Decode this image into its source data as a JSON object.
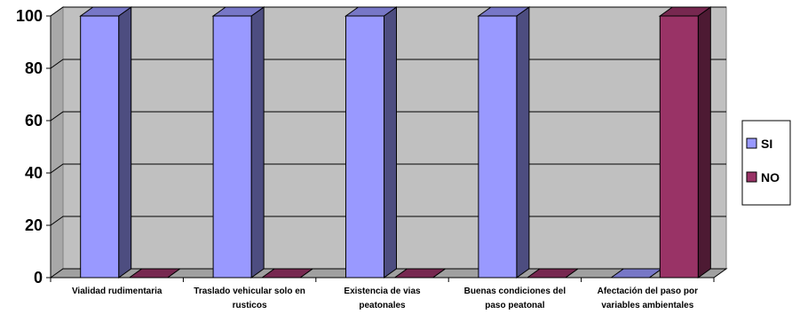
{
  "chart_data": {
    "type": "bar",
    "categories": [
      [
        "Vialidad rudimentaria"
      ],
      [
        "Traslado vehicular solo en",
        "rusticos"
      ],
      [
        "Existencia de vias",
        "peatonales"
      ],
      [
        "Buenas condiciones del",
        "paso peatonal"
      ],
      [
        "Afectación del paso por",
        "variables ambientales"
      ]
    ],
    "series": [
      {
        "name": "SI",
        "values": [
          100,
          100,
          100,
          100,
          0
        ],
        "color": "#9999ff"
      },
      {
        "name": "NO",
        "values": [
          0,
          0,
          0,
          0,
          100
        ],
        "color": "#993366"
      }
    ],
    "ylim": [
      0,
      100
    ],
    "yticks": [
      0,
      20,
      40,
      60,
      80,
      100
    ],
    "grid": true,
    "legend": "right",
    "title": "",
    "xlabel": "",
    "ylabel": ""
  }
}
